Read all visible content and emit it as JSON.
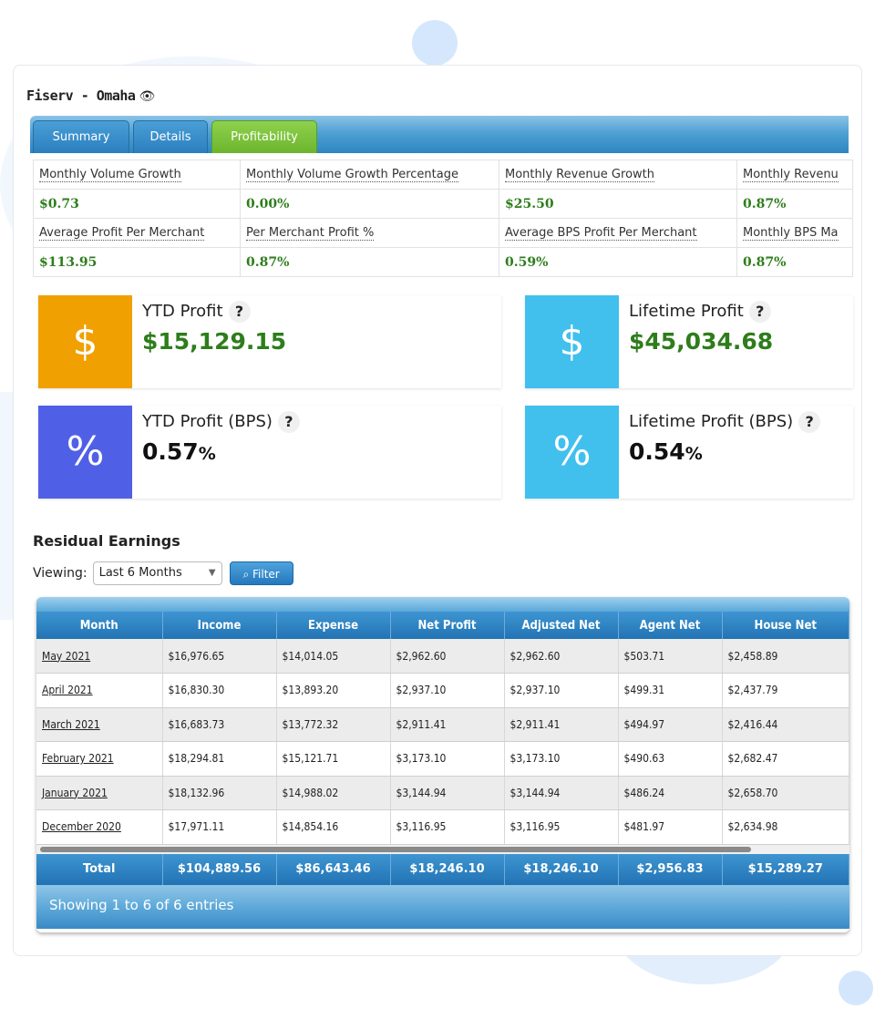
{
  "header": {
    "title": "Fiserv - Omaha",
    "eye_icon": "👁"
  },
  "tabs": [
    {
      "label": "Summary",
      "active": false
    },
    {
      "label": "Details",
      "active": false
    },
    {
      "label": "Profitability",
      "active": true
    }
  ],
  "metrics": {
    "row1": {
      "labels": [
        "Monthly Volume Growth",
        "Monthly Volume Growth Percentage",
        "Monthly Revenue Growth",
        "Monthly Revenu"
      ],
      "values": [
        "$0.73",
        "0.00%",
        "$25.50",
        "0.87%"
      ]
    },
    "row2": {
      "labels": [
        "Average Profit Per Merchant",
        "Per Merchant Profit %",
        "Average BPS Profit Per Merchant",
        "Monthly BPS Ma"
      ],
      "values": [
        "$113.95",
        "0.87%",
        "0.59%",
        "0.87%"
      ]
    }
  },
  "stats": {
    "ytd_profit": {
      "label": "YTD Profit",
      "value": "$15,129.15",
      "icon": "$",
      "color": "#f0a000"
    },
    "lifetime_profit": {
      "label": "Lifetime Profit",
      "value": "$45,034.68",
      "icon": "$",
      "color": "#41c0ee"
    },
    "ytd_bps": {
      "label": "YTD Profit (BPS)",
      "value": "0.57",
      "unit": "%",
      "icon": "%",
      "color": "#5060e6"
    },
    "lifetime_bps": {
      "label": "Lifetime Profit (BPS)",
      "value": "0.54",
      "unit": "%",
      "icon": "%",
      "color": "#41c0ee"
    },
    "help_glyph": "?"
  },
  "residual": {
    "title": "Residual Earnings",
    "viewing_label": "Viewing:",
    "viewing_value": "Last 6 Months",
    "filter_label": "Filter",
    "columns": [
      "Month",
      "Income",
      "Expense",
      "Net Profit",
      "Adjusted Net",
      "Agent Net",
      "House Net"
    ],
    "rows": [
      [
        "May 2021",
        "$16,976.65",
        "$14,014.05",
        "$2,962.60",
        "$2,962.60",
        "$503.71",
        "$2,458.89"
      ],
      [
        "April 2021",
        "$16,830.30",
        "$13,893.20",
        "$2,937.10",
        "$2,937.10",
        "$499.31",
        "$2,437.79"
      ],
      [
        "March 2021",
        "$16,683.73",
        "$13,772.32",
        "$2,911.41",
        "$2,911.41",
        "$494.97",
        "$2,416.44"
      ],
      [
        "February 2021",
        "$18,294.81",
        "$15,121.71",
        "$3,173.10",
        "$3,173.10",
        "$490.63",
        "$2,682.47"
      ],
      [
        "January 2021",
        "$18,132.96",
        "$14,988.02",
        "$3,144.94",
        "$3,144.94",
        "$486.24",
        "$2,658.70"
      ],
      [
        "December 2020",
        "$17,971.11",
        "$14,854.16",
        "$3,116.95",
        "$3,116.95",
        "$481.97",
        "$2,634.98"
      ]
    ],
    "totals": [
      "Total",
      "$104,889.56",
      "$86,643.46",
      "$18,246.10",
      "$18,246.10",
      "$2,956.83",
      "$15,289.27"
    ],
    "footer": "Showing 1 to 6 of 6 entries"
  }
}
